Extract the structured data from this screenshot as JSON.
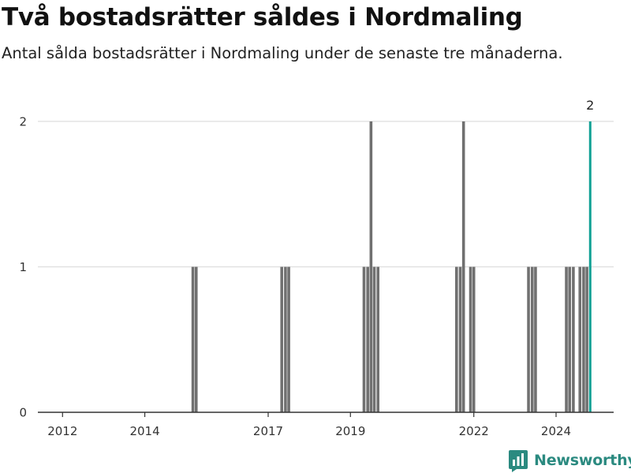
{
  "title": "Två bostadsrätter såldes i Nordmaling",
  "subtitle": "Antal sålda bostadsrätter i Nordmaling under de senaste tre månaderna.",
  "brand": {
    "name": "Newsworthy",
    "icon": "newsworthy-logo-icon",
    "color": "#2b8a80"
  },
  "colors": {
    "bar": "#707070",
    "highlight": "#12a195",
    "grid": "#dddddd",
    "axis": "#333333"
  },
  "chart_data": {
    "type": "bar",
    "title": "Två bostadsrätter såldes i Nordmaling",
    "subtitle": "Antal sålda bostadsrätter i Nordmaling under de senaste tre månaderna.",
    "xlabel": "",
    "ylabel": "",
    "ylim": [
      0,
      2
    ],
    "y_ticks": [
      0,
      1,
      2
    ],
    "x_ticks": [
      {
        "label": "2012",
        "x": 2012.0
      },
      {
        "label": "2014",
        "x": 2014.0
      },
      {
        "label": "2017",
        "x": 2017.0
      },
      {
        "label": "2019",
        "x": 2019.0
      },
      {
        "label": "2022",
        "x": 2022.0
      },
      {
        "label": "2024",
        "x": 2024.0
      }
    ],
    "x_range": [
      2011.4,
      2025.4
    ],
    "grid": true,
    "legend": "none",
    "series": [
      {
        "values": [
          {
            "x": 2015.17,
            "y": 1
          },
          {
            "x": 2015.25,
            "y": 1
          },
          {
            "x": 2017.33,
            "y": 1
          },
          {
            "x": 2017.42,
            "y": 1
          },
          {
            "x": 2017.5,
            "y": 1
          },
          {
            "x": 2019.33,
            "y": 1
          },
          {
            "x": 2019.42,
            "y": 1
          },
          {
            "x": 2019.5,
            "y": 2
          },
          {
            "x": 2019.58,
            "y": 1
          },
          {
            "x": 2019.67,
            "y": 1
          },
          {
            "x": 2021.58,
            "y": 1
          },
          {
            "x": 2021.67,
            "y": 1
          },
          {
            "x": 2021.75,
            "y": 2
          },
          {
            "x": 2021.92,
            "y": 1
          },
          {
            "x": 2022.0,
            "y": 1
          },
          {
            "x": 2023.33,
            "y": 1
          },
          {
            "x": 2023.42,
            "y": 1
          },
          {
            "x": 2023.5,
            "y": 1
          },
          {
            "x": 2024.25,
            "y": 1
          },
          {
            "x": 2024.33,
            "y": 1
          },
          {
            "x": 2024.42,
            "y": 1
          },
          {
            "x": 2024.58,
            "y": 1
          },
          {
            "x": 2024.67,
            "y": 1
          },
          {
            "x": 2024.75,
            "y": 1
          }
        ]
      }
    ],
    "highlight": {
      "x": 2024.83,
      "y": 2,
      "label": "2"
    }
  }
}
